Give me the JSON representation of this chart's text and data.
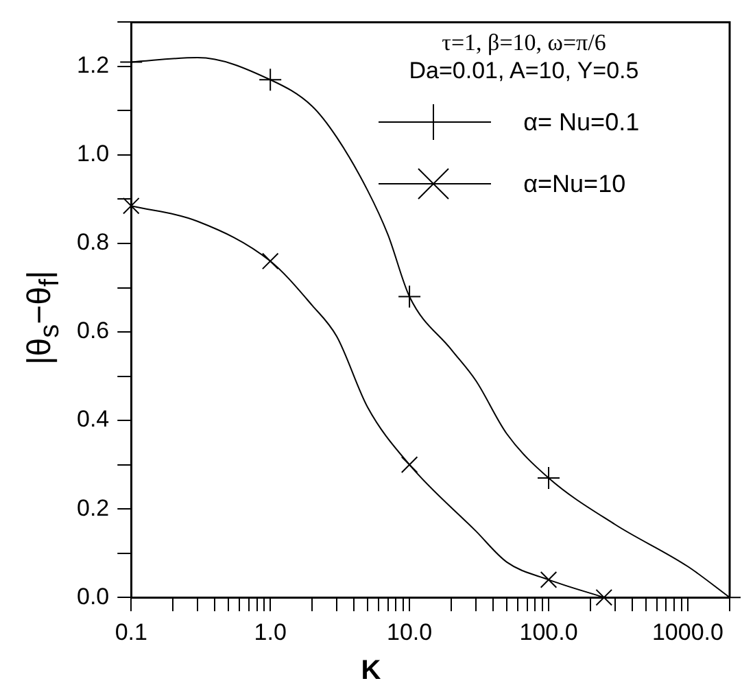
{
  "chart_data": {
    "type": "line",
    "xlabel": "K",
    "ylabel": "|θ$_{s}$−θ$_{f}$|",
    "annotations": [
      "τ=1, β=10, ω=π/6",
      "Da=0.01, A=10, Y=0.5"
    ],
    "log": "x",
    "grid": false,
    "legend": "top right",
    "xlim": [
      0.1,
      2000
    ],
    "ylim": [
      0,
      1.3
    ],
    "xticks": [
      {
        "value": 0.1,
        "label": "0.1"
      },
      {
        "value": 0.2,
        "label": null
      },
      {
        "value": 0.3,
        "label": null
      },
      {
        "value": 0.4,
        "label": null
      },
      {
        "value": 0.5,
        "label": null
      },
      {
        "value": 0.6,
        "label": null
      },
      {
        "value": 0.7,
        "label": null
      },
      {
        "value": 0.8,
        "label": null
      },
      {
        "value": 0.9,
        "label": null
      },
      {
        "value": 1,
        "label": "1.0"
      },
      {
        "value": 2,
        "label": null
      },
      {
        "value": 3,
        "label": null
      },
      {
        "value": 4,
        "label": null
      },
      {
        "value": 5,
        "label": null
      },
      {
        "value": 6,
        "label": null
      },
      {
        "value": 7,
        "label": null
      },
      {
        "value": 8,
        "label": null
      },
      {
        "value": 9,
        "label": null
      },
      {
        "value": 10,
        "label": "10.0"
      },
      {
        "value": 20,
        "label": null
      },
      {
        "value": 30,
        "label": null
      },
      {
        "value": 40,
        "label": null
      },
      {
        "value": 50,
        "label": null
      },
      {
        "value": 60,
        "label": null
      },
      {
        "value": 70,
        "label": null
      },
      {
        "value": 80,
        "label": null
      },
      {
        "value": 90,
        "label": null
      },
      {
        "value": 100,
        "label": "100.0"
      },
      {
        "value": 200,
        "label": null
      },
      {
        "value": 300,
        "label": null
      },
      {
        "value": 400,
        "label": null
      },
      {
        "value": 500,
        "label": null
      },
      {
        "value": 600,
        "label": null
      },
      {
        "value": 700,
        "label": null
      },
      {
        "value": 800,
        "label": null
      },
      {
        "value": 900,
        "label": null
      },
      {
        "value": 1000,
        "label": "1000.0"
      },
      {
        "value": 2000,
        "label": null
      }
    ],
    "yticks": [
      {
        "value": 0,
        "label": "0.0"
      },
      {
        "value": 0.1,
        "label": null
      },
      {
        "value": 0.2,
        "label": "0.2"
      },
      {
        "value": 0.3,
        "label": null
      },
      {
        "value": 0.4,
        "label": "0.4"
      },
      {
        "value": 0.5,
        "label": null
      },
      {
        "value": 0.6,
        "label": "0.6"
      },
      {
        "value": 0.7,
        "label": null
      },
      {
        "value": 0.8,
        "label": "0.8"
      },
      {
        "value": 0.9,
        "label": null
      },
      {
        "value": 1,
        "label": "1.0"
      },
      {
        "value": 1.1,
        "label": null
      },
      {
        "value": 1.2,
        "label": "1.2"
      },
      {
        "value": 1.3,
        "label": null
      }
    ],
    "series": [
      {
        "type": "line",
        "marker": "none",
        "color": "#000000",
        "x": [
          0.1,
          0.3,
          1,
          2,
          3,
          5,
          7,
          10,
          20,
          30,
          50,
          100,
          300,
          1000,
          2000
        ],
        "values": [
          1.21,
          1.22,
          1.17,
          1.11,
          1.04,
          0.92,
          0.82,
          0.68,
          0.56,
          0.49,
          0.37,
          0.27,
          0.165,
          0.07,
          0
        ]
      },
      {
        "type": "scatter",
        "marker": "cross",
        "name": "α= Nu=0.1",
        "color": "#000000",
        "x": [
          0.1,
          1,
          10,
          100,
          2000
        ],
        "values": [
          1.21,
          1.17,
          0.68,
          0.27,
          0
        ]
      },
      {
        "type": "line",
        "marker": "none",
        "color": "#000000",
        "x": [
          0.1,
          0.3,
          1,
          2,
          3,
          5,
          10,
          30,
          50,
          100,
          250
        ],
        "values": [
          0.885,
          0.85,
          0.76,
          0.66,
          0.59,
          0.43,
          0.3,
          0.15,
          0.08,
          0.04,
          0
        ]
      },
      {
        "type": "scatter",
        "marker": "cross",
        "name": "α=Nu=10",
        "color": "#000000",
        "x": [
          0.1,
          1,
          10,
          100,
          250
        ],
        "values": [
          0.885,
          0.76,
          0.3,
          0.04,
          0
        ]
      }
    ]
  }
}
